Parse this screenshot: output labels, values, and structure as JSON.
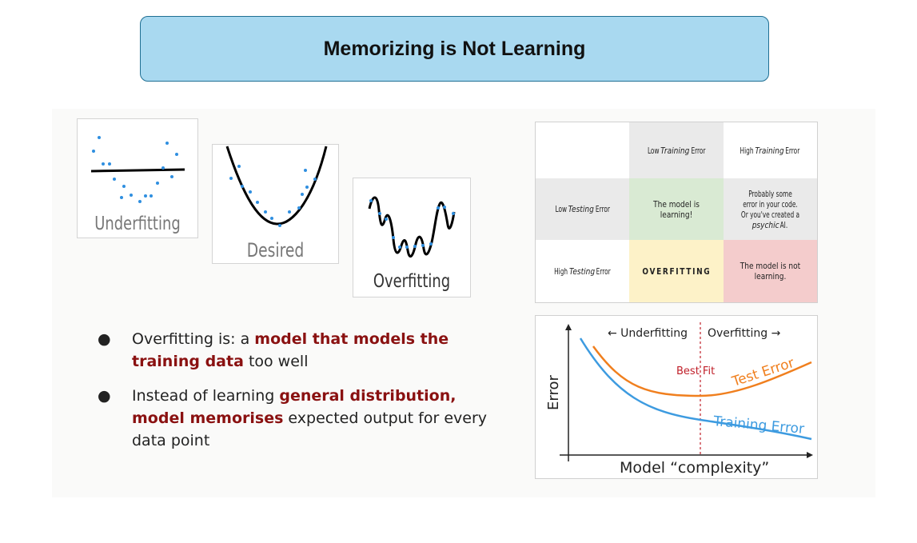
{
  "title": "Memorizing is Not Learning",
  "panels": {
    "underfitting": "Underfitting",
    "desired": "Desired",
    "overfitting": "Overfitting"
  },
  "bullets": [
    {
      "dot": "●",
      "p1": "Overfitting is: a ",
      "h1": "model that models the training data",
      "p2": " too well"
    },
    {
      "dot": "●",
      "p1": "Instead of learning ",
      "h1": "general distribution, model memorises",
      "p2": " expected output for every data point"
    }
  ],
  "table": {
    "col1": "Low ",
    "col1_em": "Training",
    "col1_end": " Error",
    "col2": "High ",
    "col2_em": "Training",
    "col2_end": " Error",
    "row1": "Low ",
    "row1_em": "Testing",
    "row1_end": " Error",
    "row2": "High ",
    "row2_em": "Testing",
    "row2_end": " Error",
    "c11": "The model is learning!",
    "c12_a": "Probably some error in your code. Or you've created a ",
    "c12_em": "psychic",
    "c12_b": " AI.",
    "c21": "OVERFITTING",
    "c22": "The model is not learning."
  },
  "chart": {
    "left_label": "← Underfitting",
    "right_label": "Overfitting →",
    "best_fit": "Best Fit",
    "test_label": "Test Error",
    "train_label": "Training Error",
    "xlabel": "Model “complexity”",
    "ylabel": "Error",
    "test_color": "#f07f1e",
    "train_color": "#3d9be0",
    "divider_color": "#c0202a"
  },
  "colors": {
    "title_bg": "#a9d9f0",
    "highlight": "#8a1111",
    "dots": "#2f8fe0"
  }
}
